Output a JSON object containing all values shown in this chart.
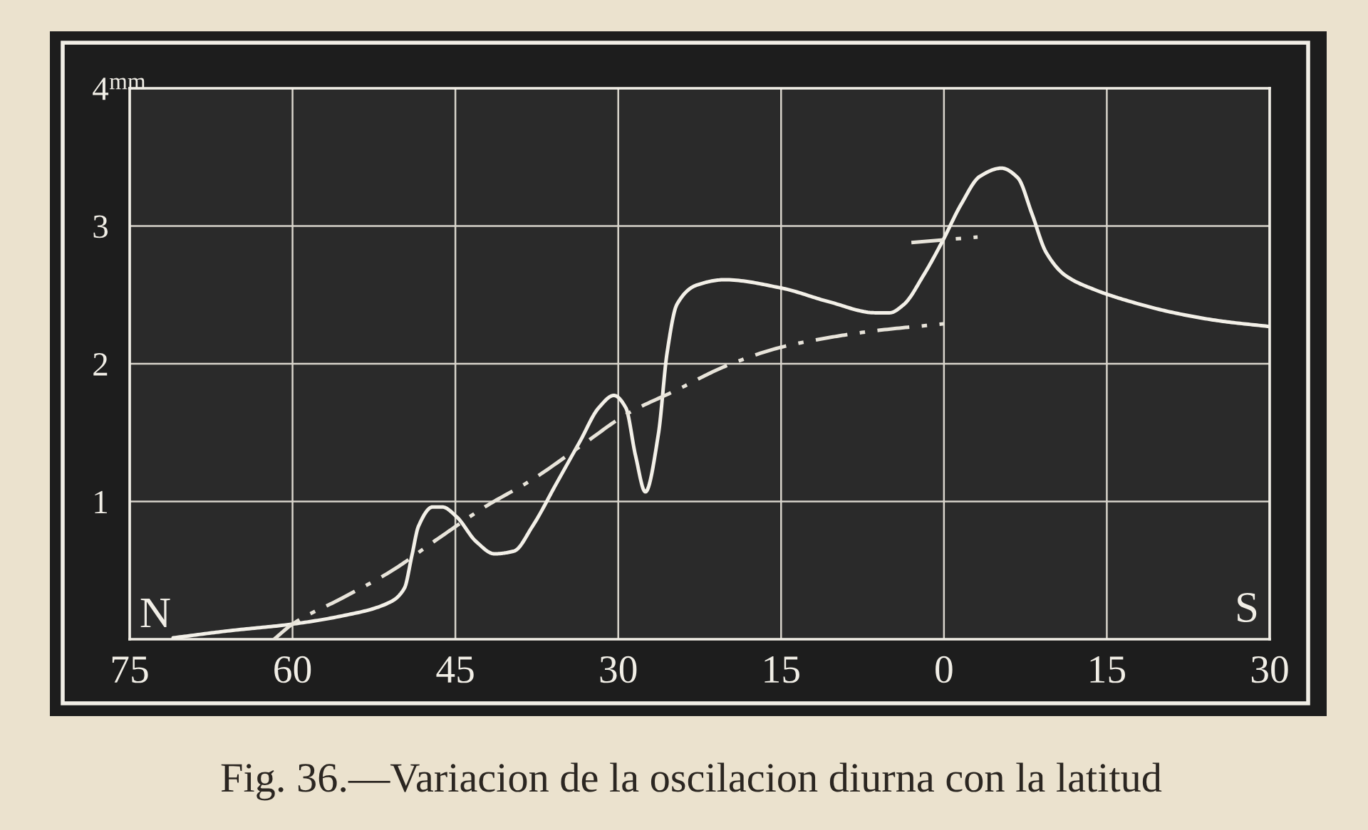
{
  "chart_data": {
    "type": "line",
    "annotations": [
      "N",
      "S",
      "Fig. 36.—Variacion de la oscilacion diurna con la latitud"
    ],
    "xlim": [
      75,
      -30
    ],
    "xticks": [
      75,
      60,
      45,
      30,
      15,
      0,
      {
        "value": -15,
        "label": "15"
      },
      {
        "value": -30,
        "label": "30"
      }
    ],
    "ylim": [
      0,
      4
    ],
    "yticks": [
      1,
      2,
      3,
      {
        "value": 4,
        "label": "4$^{mm}$"
      }
    ],
    "grid": true,
    "series": [
      {
        "color": "#f3f0e8",
        "line_style": "solid",
        "x": [
          71,
          66,
          60,
          55.4,
          51,
          49.7,
          49.0,
          48.4,
          47.1,
          46.2,
          44.9,
          43.1,
          41.4,
          39.6,
          37.9,
          35.7,
          33.5,
          31.8,
          30.4,
          29.3,
          28.4,
          27.5,
          26.3,
          25.5,
          24.6,
          22.8,
          20.2,
          15,
          10.6,
          6.3,
          5.0,
          3.7,
          1.9,
          0.2,
          -1.6,
          -3.3,
          -5.3,
          -6.8,
          -8.1,
          -9.4,
          -11.2,
          -13.8,
          -16.8,
          -21.2,
          -25.5,
          -30
        ],
        "values": [
          0.01,
          0.06,
          0.11,
          0.17,
          0.27,
          0.37,
          0.61,
          0.82,
          0.96,
          0.96,
          0.89,
          0.71,
          0.62,
          0.64,
          0.82,
          1.13,
          1.44,
          1.68,
          1.77,
          1.68,
          1.33,
          1.07,
          1.49,
          2.08,
          2.43,
          2.57,
          2.61,
          2.55,
          2.45,
          2.37,
          2.37,
          2.43,
          2.64,
          2.88,
          3.16,
          3.36,
          3.42,
          3.35,
          3.09,
          2.81,
          2.64,
          2.54,
          2.46,
          2.37,
          2.31,
          2.27
        ]
      },
      {
        "color": "#e8e4da",
        "line_style": "dashdot",
        "x": [
          61.7,
          60,
          55.4,
          51,
          46.6,
          42.3,
          37.9,
          33.5,
          29.1,
          24.6,
          20.2,
          15,
          10.6,
          6.3,
          0
        ],
        "values": [
          0,
          0.11,
          0.3,
          0.49,
          0.73,
          0.96,
          1.16,
          1.4,
          1.64,
          1.81,
          1.98,
          2.12,
          2.19,
          2.24,
          2.29
        ]
      },
      {
        "color": "#e8e4da",
        "line_style": "dashdot",
        "x": [
          3.0,
          -3.1
        ],
        "values": [
          2.88,
          2.92
        ]
      }
    ]
  }
}
